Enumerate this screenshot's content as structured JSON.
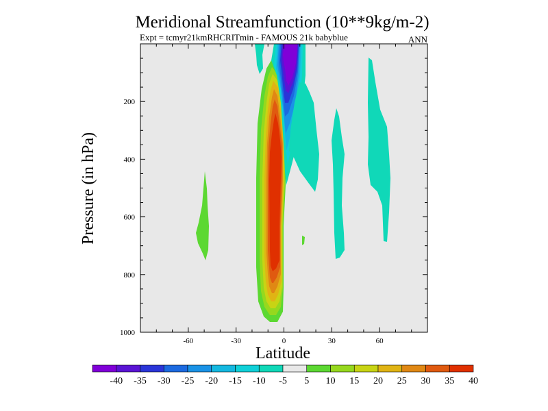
{
  "chart_data": {
    "type": "contour",
    "title": "Meridional Streamfunction (10**9kg/m-2)",
    "subtitle": "Expt = tcmyr21kmRHCRITmin - FAMOUS 21k babyblue",
    "corner_label": "ANN",
    "xlabel": "Latitude",
    "ylabel": "Pressure (in hPa)",
    "xlim": [
      -90,
      90
    ],
    "ylim": [
      1000,
      0
    ],
    "x_ticks": [
      -60,
      -30,
      0,
      30,
      60
    ],
    "x_tick_labels": [
      "-60",
      "-30",
      "0",
      "30",
      "60"
    ],
    "y_ticks": [
      200,
      400,
      600,
      800,
      1000
    ],
    "y_tick_labels": [
      "200",
      "400",
      "600",
      "800",
      "1000"
    ],
    "background": "#e8e8e8",
    "colorbar": {
      "labels": [
        "-40",
        "-35",
        "-30",
        "-25",
        "-20",
        "-15",
        "-10",
        "-5",
        "5",
        "10",
        "15",
        "20",
        "25",
        "30",
        "35",
        "40"
      ],
      "colors": [
        "#8000d8",
        "#5a14d4",
        "#2a35d8",
        "#1c6ae0",
        "#1a92e6",
        "#14b8e0",
        "#10d0d8",
        "#10d8b8",
        "#e8e8e8",
        "#5cd832",
        "#96d81e",
        "#c8d414",
        "#e0b414",
        "#e08814",
        "#e05a10",
        "#e03000"
      ]
    },
    "features": [
      {
        "name": "southern-overturning-cell",
        "sign": "positive",
        "max_level": 40,
        "lat_range": [
          -14,
          2
        ],
        "pressure_range": [
          50,
          960
        ]
      },
      {
        "name": "northern-overturning-cell",
        "sign": "negative",
        "min_level": -40,
        "lat_range": [
          -2,
          10
        ],
        "pressure_range": [
          0,
          300
        ]
      },
      {
        "name": "southern-midlatitude-patch",
        "sign": "positive",
        "level": 10,
        "lat_range": [
          -50,
          -44
        ],
        "pressure_range": [
          440,
          750
        ]
      },
      {
        "name": "northern-tropical-patch",
        "sign": "negative",
        "level": -5,
        "lat_range": [
          -10,
          20
        ],
        "pressure_range": [
          120,
          520
        ]
      },
      {
        "name": "northern-subtropical-patch",
        "sign": "negative",
        "level": -5,
        "lat_range": [
          28,
          38
        ],
        "pressure_range": [
          240,
          740
        ]
      },
      {
        "name": "northern-midlatitude-patch",
        "sign": "negative",
        "level": -5,
        "lat_range": [
          52,
          66
        ],
        "pressure_range": [
          60,
          690
        ]
      }
    ]
  }
}
